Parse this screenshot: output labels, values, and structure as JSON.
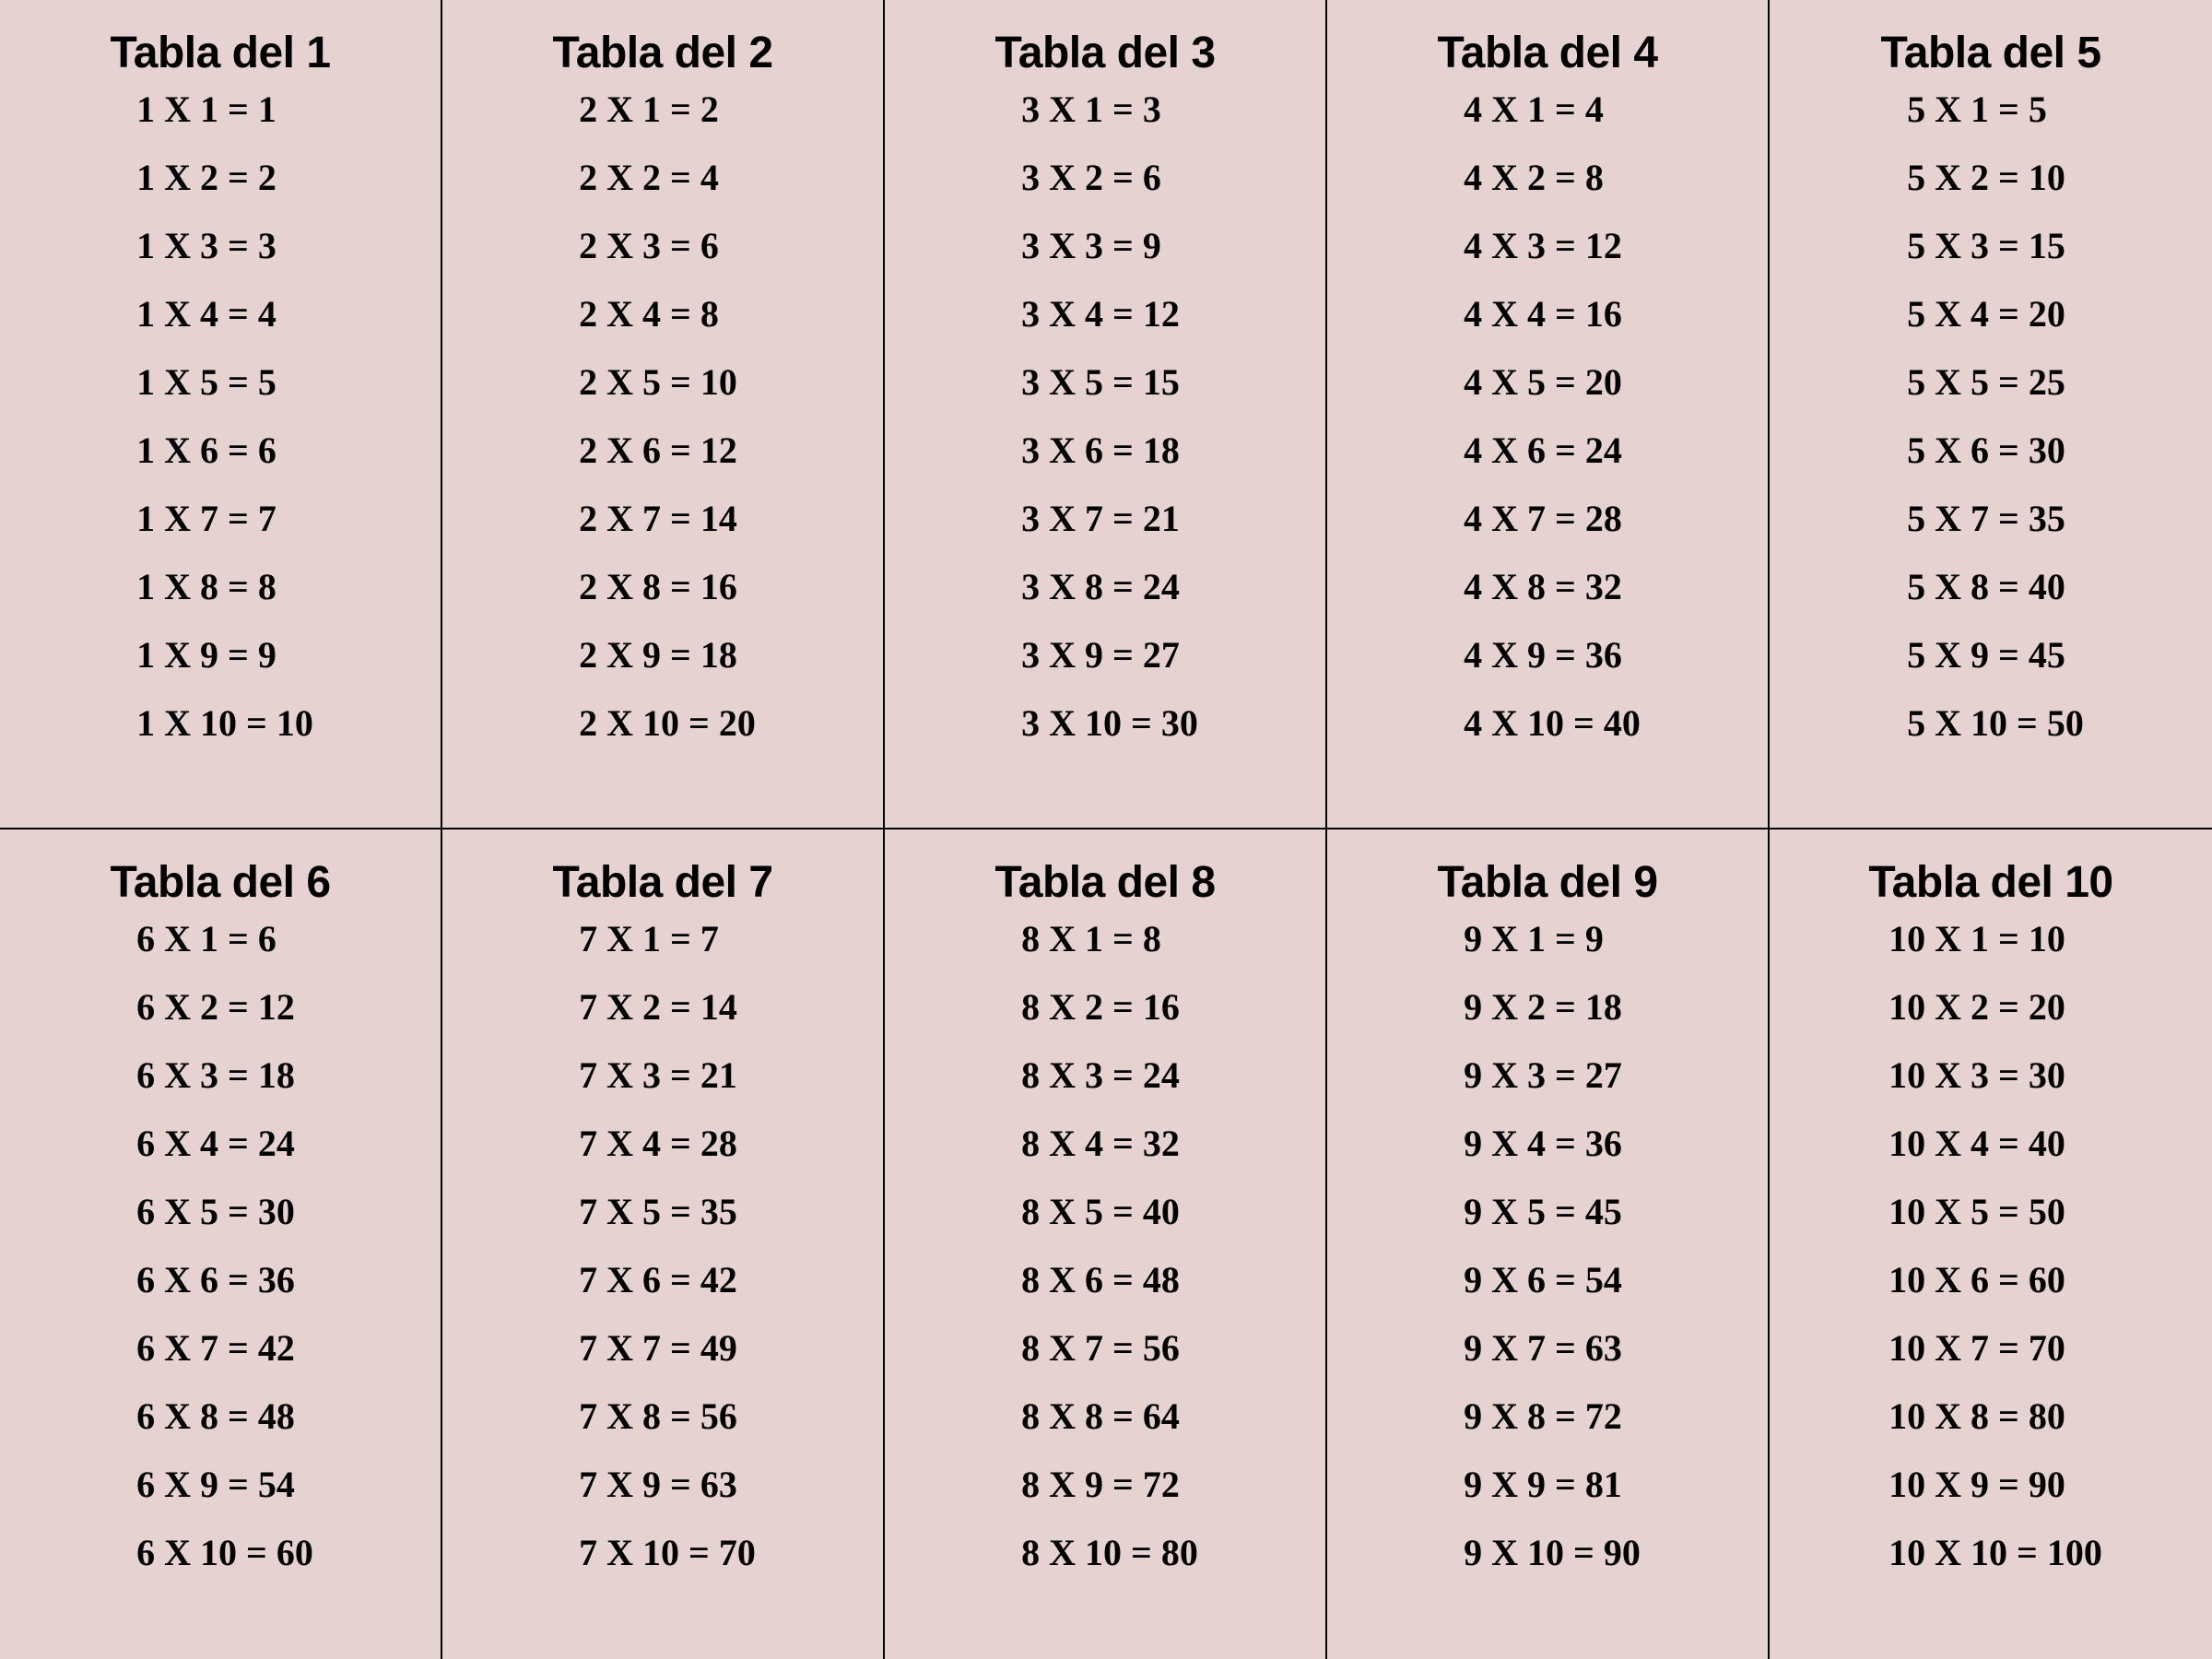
{
  "background_color": "#e6d2d1",
  "text_color": "#000000",
  "border_color": "#000000",
  "columns": 5,
  "rows_count": 2,
  "title_fontsize": 48,
  "row_fontsize": 40,
  "tables": [
    {
      "title": "Tabla del 1",
      "rows": [
        "1 X 1 = 1",
        "1 X 2 = 2",
        "1 X 3 = 3",
        "1 X 4 = 4",
        "1 X 5 = 5",
        "1 X 6 = 6",
        "1 X 7 = 7",
        "1 X 8 = 8",
        "1 X 9 = 9",
        "1 X 10 = 10"
      ]
    },
    {
      "title": "Tabla del 2",
      "rows": [
        "2 X 1 = 2",
        "2 X 2 = 4",
        "2 X 3 = 6",
        "2 X 4 = 8",
        "2 X 5 = 10",
        "2 X 6 = 12",
        "2 X 7 = 14",
        "2 X 8 = 16",
        "2 X 9 = 18",
        "2 X 10 = 20"
      ]
    },
    {
      "title": "Tabla del 3",
      "rows": [
        "3 X 1 = 3",
        "3 X 2 = 6",
        "3 X 3 = 9",
        "3 X 4 = 12",
        "3 X 5 = 15",
        "3 X 6 = 18",
        "3 X 7 = 21",
        "3 X 8 = 24",
        "3 X 9 = 27",
        "3 X 10 = 30"
      ]
    },
    {
      "title": "Tabla del 4",
      "rows": [
        "4 X 1 = 4",
        "4 X 2 = 8",
        "4 X 3 = 12",
        "4 X 4 = 16",
        "4 X 5 = 20",
        "4 X 6 = 24",
        "4 X 7 = 28",
        "4 X 8 = 32",
        "4 X 9 = 36",
        "4 X 10 = 40"
      ]
    },
    {
      "title": "Tabla del 5",
      "rows": [
        "5 X 1 = 5",
        "5 X 2 = 10",
        "5 X 3 = 15",
        "5 X 4 = 20",
        "5 X 5 = 25",
        "5 X 6 = 30",
        "5 X 7 = 35",
        "5 X 8 = 40",
        "5 X 9 = 45",
        "5 X 10 = 50"
      ]
    },
    {
      "title": "Tabla del 6",
      "rows": [
        "6 X 1 = 6",
        "6 X 2 = 12",
        "6 X 3 = 18",
        "6 X 4 = 24",
        "6 X 5 = 30",
        "6 X 6 = 36",
        "6 X 7 = 42",
        "6 X 8 = 48",
        "6 X 9 = 54",
        "6 X 10 = 60"
      ]
    },
    {
      "title": "Tabla del 7",
      "rows": [
        "7 X 1 = 7",
        "7 X 2 = 14",
        "7 X 3 = 21",
        "7 X 4 = 28",
        "7 X 5 = 35",
        "7 X 6 = 42",
        "7 X 7 = 49",
        "7 X 8 = 56",
        "7 X 9 = 63",
        "7 X 10 = 70"
      ]
    },
    {
      "title": "Tabla del 8",
      "rows": [
        "8 X 1 = 8",
        "8 X 2 = 16",
        "8 X 3 = 24",
        "8 X 4 = 32",
        "8 X 5 = 40",
        "8 X 6 = 48",
        "8 X 7 = 56",
        "8 X 8 = 64",
        "8 X 9 = 72",
        "8 X 10 = 80"
      ]
    },
    {
      "title": "Tabla del 9",
      "rows": [
        "9 X 1 = 9",
        "9 X 2 = 18",
        "9 X 3 = 27",
        "9 X 4 = 36",
        "9 X 5 = 45",
        "9 X 6 = 54",
        "9 X 7 = 63",
        "9 X 8 = 72",
        "9 X 9 = 81",
        "9 X 10 = 90"
      ]
    },
    {
      "title": "Tabla del 10",
      "rows": [
        "10 X 1 = 10",
        "10 X 2 = 20",
        "10 X 3 = 30",
        "10 X 4 = 40",
        "10 X 5 = 50",
        "10 X 6 = 60",
        "10 X 7 = 70",
        "10 X 8 = 80",
        "10 X 9 = 90",
        "10 X 10 = 100"
      ]
    }
  ]
}
